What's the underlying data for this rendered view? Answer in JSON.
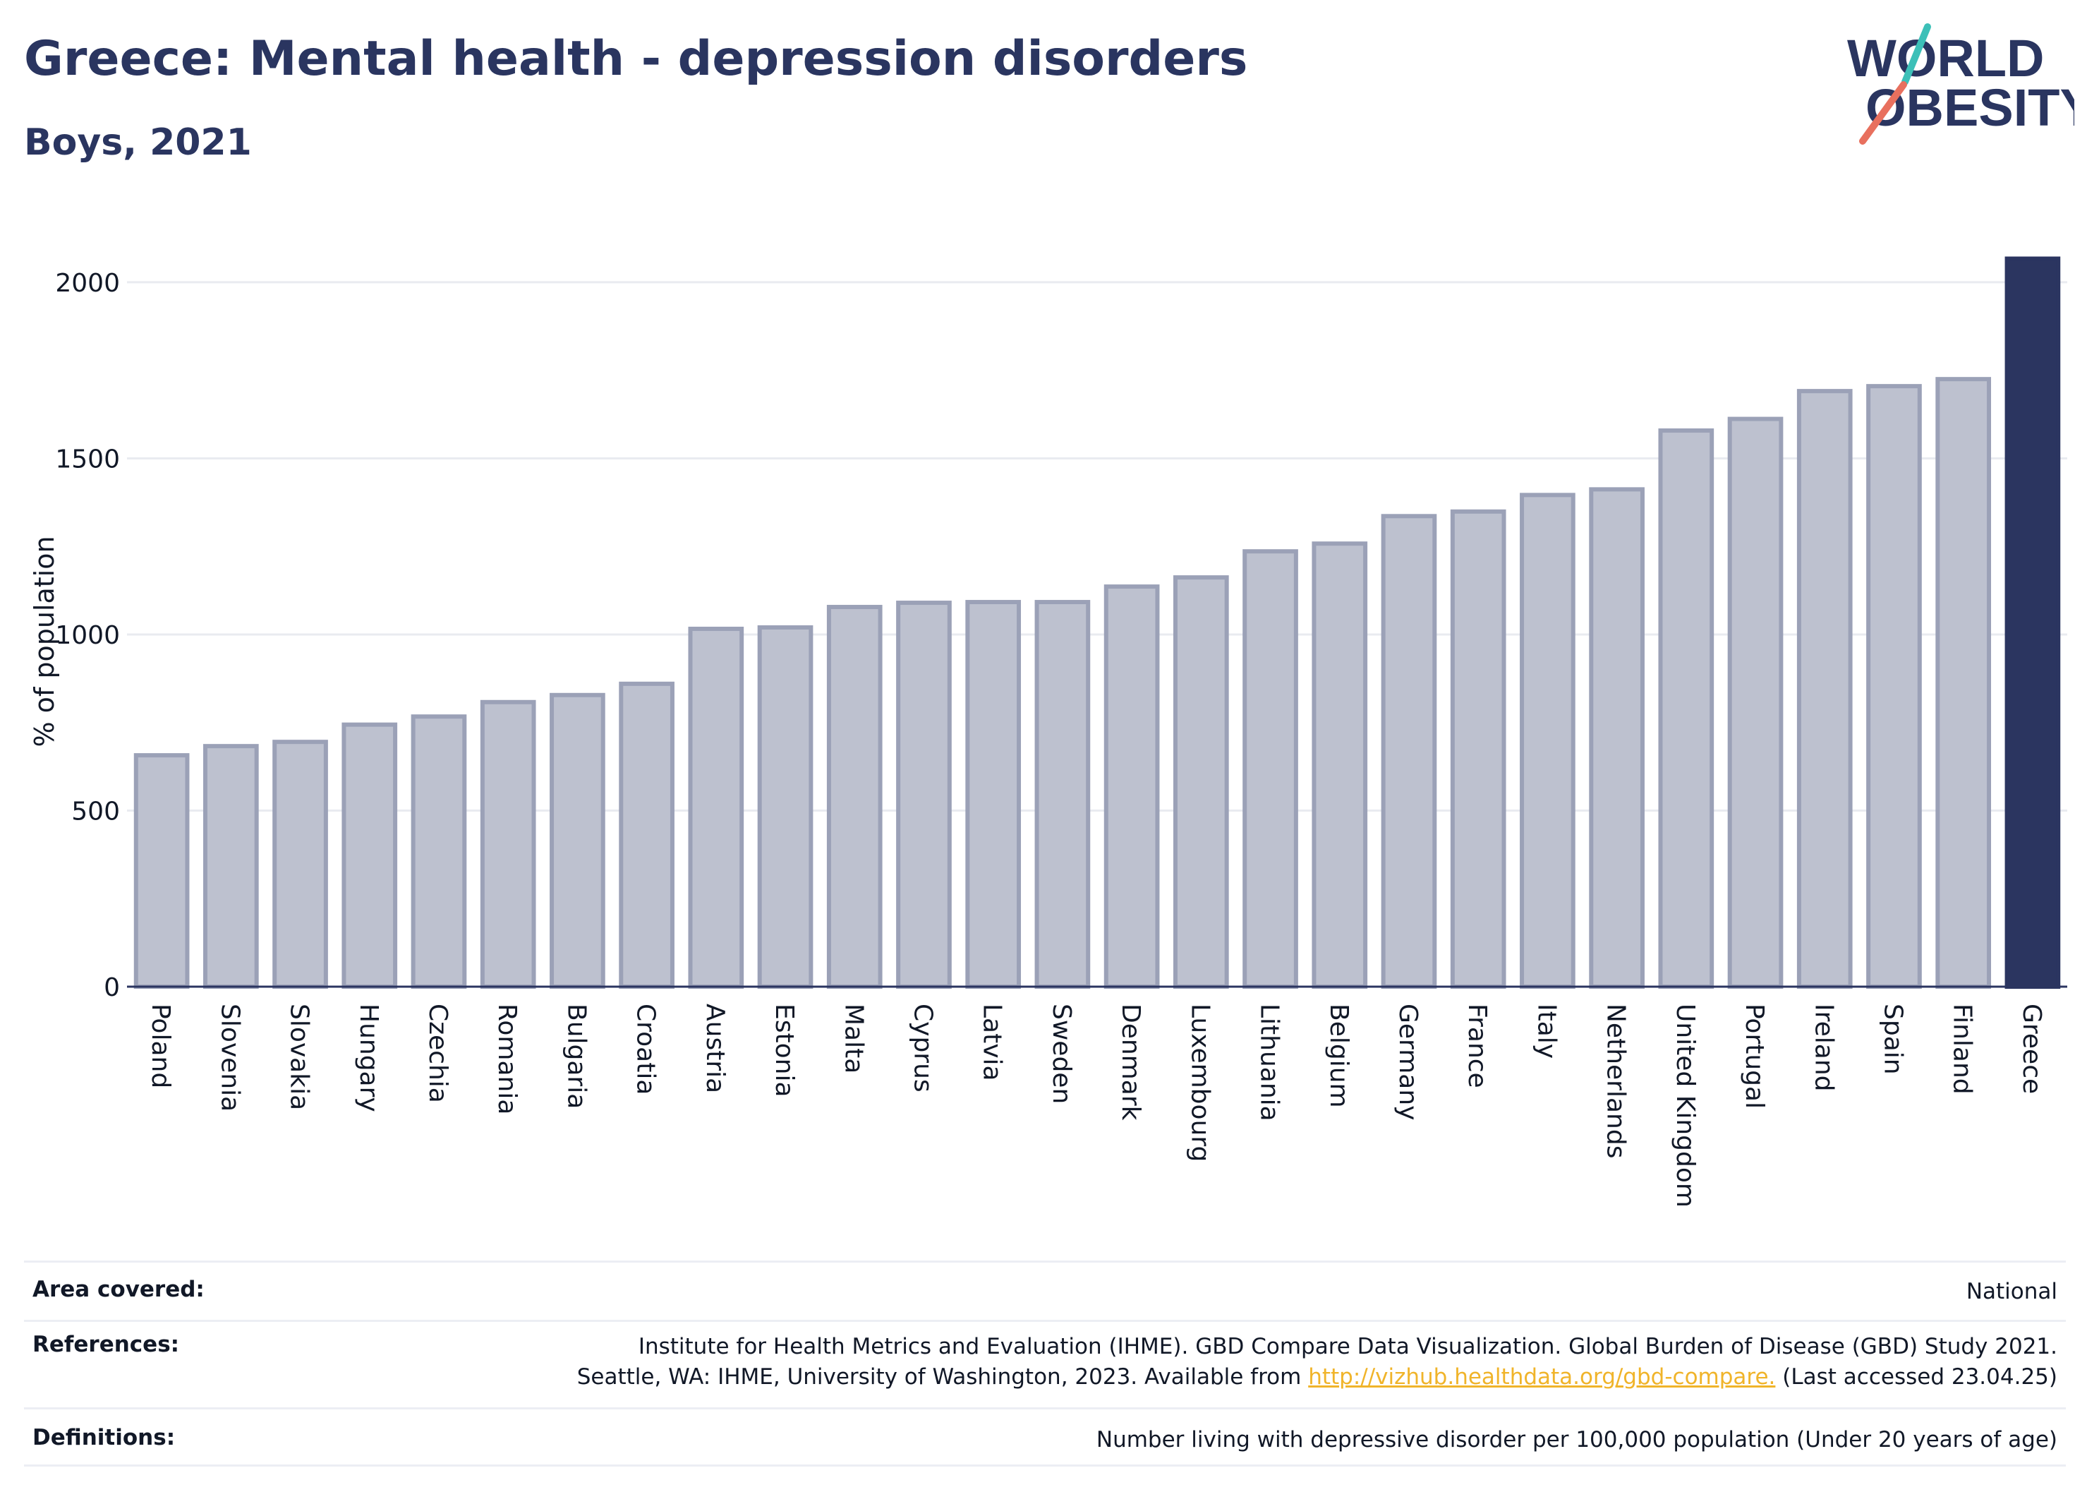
{
  "header": {
    "title": "Greece: Mental health - depression disorders",
    "subtitle": "Boys, 2021"
  },
  "logo": {
    "line1": "WORLD",
    "line2": "OBESITY",
    "text_color": "#2a3560",
    "slash_top_color": "#3cc0b8",
    "slash_bottom_color": "#e8705e"
  },
  "chart_data": {
    "type": "bar",
    "title": "Greece: Mental health - depression disorders",
    "subtitle": "Boys, 2021",
    "ylabel": "% of population",
    "xlabel": "",
    "ylim": [
      0,
      2080
    ],
    "yticks": [
      0,
      500,
      1000,
      1500,
      2000
    ],
    "grid": true,
    "highlight": "Greece",
    "categories": [
      "Poland",
      "Slovenia",
      "Slovakia",
      "Hungary",
      "Czechia",
      "Romania",
      "Bulgaria",
      "Croatia",
      "Austria",
      "Estonia",
      "Malta",
      "Cyprus",
      "Latvia",
      "Sweden",
      "Denmark",
      "Luxembourg",
      "Lithuania",
      "Belgium",
      "Germany",
      "France",
      "Italy",
      "Netherlands",
      "United Kingdom",
      "Portugal",
      "Ireland",
      "Spain",
      "Finland",
      "Greece"
    ],
    "values": [
      657,
      683,
      695,
      744,
      767,
      808,
      828,
      860,
      1016,
      1020,
      1078,
      1090,
      1092,
      1092,
      1136,
      1162,
      1236,
      1258,
      1336,
      1349,
      1396,
      1412,
      1579,
      1612,
      1691,
      1705,
      1725,
      2067
    ],
    "colors": {
      "bar": "#bdc1cf",
      "bar_edge": "#9ba1b7",
      "highlight": "#2b3560",
      "grid": "#e9ebf0",
      "axis": "#2b3560"
    }
  },
  "meta": {
    "area_label": "Area covered:",
    "area_value": "National",
    "references_label": "References:",
    "references_line1": "Institute for Health Metrics and Evaluation (IHME). GBD Compare Data Visualization. Global Burden of Disease (GBD) Study 2021.",
    "references_line2_prefix": "Seattle, WA: IHME, University of Washington, 2023. Available from ",
    "references_link": "http://vizhub.healthdata.org/gbd-compare.",
    "references_line2_suffix": " (Last accessed 23.04.25)",
    "definitions_label": "Definitions:",
    "definitions_value": "Number living with depressive disorder per 100,000 population (Under 20 years of age)"
  }
}
